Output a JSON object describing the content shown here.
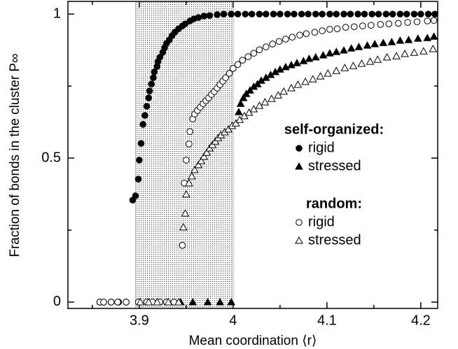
{
  "chart_data": {
    "type": "scatter",
    "xlabel": "Mean coordination ⟨r⟩",
    "ylabel": "Fraction of bonds in the cluster P∞",
    "xlim": [
      3.824,
      4.218
    ],
    "ylim": [
      -0.022,
      1.044
    ],
    "xticks": [
      3.9,
      4,
      4.1,
      4.2
    ],
    "yticks": [
      0,
      0.5,
      1
    ],
    "xminorticks": [
      3.85,
      3.95,
      4.05,
      4.15
    ],
    "yminorticks": [
      0.25,
      0.75
    ],
    "shaded_region": {
      "x": [
        3.896,
        4.0
      ],
      "color": "#999999"
    },
    "legend_position": "right",
    "groups": [
      {
        "title": "self-organized:",
        "series": [
          {
            "name": "rigid",
            "marker": "circle",
            "filled": true,
            "color": "#000000",
            "x": [
              3.858,
              3.862,
              3.87,
              3.878,
              3.886,
              3.893,
              3.896,
              3.899,
              3.9,
              3.902,
              3.904,
              3.906,
              3.908,
              3.91,
              3.911,
              3.913,
              3.915,
              3.916,
              3.919,
              3.92,
              3.922,
              3.925,
              3.927,
              3.929,
              3.932,
              3.935,
              3.938,
              3.942,
              3.946,
              3.949,
              3.954,
              3.958,
              3.963,
              3.969,
              3.975,
              3.983,
              3.99,
              3.998,
              4.005,
              4.013,
              4.02,
              4.028,
              4.035,
              4.043,
              4.05,
              4.058,
              4.065,
              4.073,
              4.08,
              4.088,
              4.095,
              4.103,
              4.11,
              4.118,
              4.125,
              4.133,
              4.14,
              4.148,
              4.155,
              4.163,
              4.17,
              4.178,
              4.185,
              4.193,
              4.2,
              4.208,
              4.215
            ],
            "values": [
              0,
              0,
              0,
              0,
              0,
              0.354,
              0.369,
              0.427,
              0.493,
              0.551,
              0.617,
              0.648,
              0.68,
              0.709,
              0.733,
              0.757,
              0.779,
              0.799,
              0.818,
              0.835,
              0.85,
              0.867,
              0.883,
              0.898,
              0.91,
              0.925,
              0.937,
              0.949,
              0.959,
              0.966,
              0.976,
              0.983,
              0.988,
              0.993,
              0.995,
              0.998,
              1,
              1,
              1,
              1,
              1,
              1,
              1,
              1,
              1,
              1,
              1,
              1,
              1,
              1,
              1,
              1,
              1,
              1,
              1,
              1,
              1,
              1,
              1,
              1,
              1,
              1,
              1,
              1,
              1,
              1,
              1
            ]
          },
          {
            "name": "stressed",
            "marker": "triangle",
            "filled": true,
            "color": "#000000",
            "x": [
              3.944,
              3.957,
              3.973,
              3.986,
              3.998,
              4.006,
              4.008,
              4.011,
              4.014,
              4.018,
              4.022,
              4.026,
              4.03,
              4.035,
              4.04,
              4.045,
              4.05,
              4.056,
              4.062,
              4.068,
              4.075,
              4.081,
              4.088,
              4.096,
              4.103,
              4.11,
              4.118,
              4.126,
              4.134,
              4.143,
              4.151,
              4.16,
              4.169,
              4.178,
              4.187,
              4.197,
              4.207,
              4.214
            ],
            "values": [
              0,
              0,
              0,
              0,
              0,
              0.66,
              0.689,
              0.709,
              0.723,
              0.735,
              0.748,
              0.757,
              0.769,
              0.779,
              0.789,
              0.799,
              0.808,
              0.816,
              0.823,
              0.83,
              0.837,
              0.845,
              0.85,
              0.857,
              0.864,
              0.869,
              0.874,
              0.881,
              0.886,
              0.891,
              0.896,
              0.9,
              0.903,
              0.908,
              0.91,
              0.915,
              0.917,
              0.922
            ]
          }
        ]
      },
      {
        "title": "random:",
        "series": [
          {
            "name": "rigid",
            "marker": "circle",
            "filled": false,
            "color": "#000000",
            "x": [
              3.858,
              3.862,
              3.87,
              3.877,
              3.886,
              3.899,
              3.908,
              3.914,
              3.922,
              3.929,
              3.937,
              3.946,
              3.948,
              3.95,
              3.953,
              3.954,
              3.957,
              3.959,
              3.962,
              3.965,
              3.968,
              3.971,
              3.974,
              3.977,
              3.98,
              3.983,
              3.986,
              3.989,
              3.992,
              3.996,
              4.0,
              4.005,
              4.01,
              4.016,
              4.022,
              4.028,
              4.035,
              4.042,
              4.049,
              4.056,
              4.063,
              4.071,
              4.078,
              4.087,
              4.095,
              4.103,
              4.111,
              4.12,
              4.129,
              4.138,
              4.147,
              4.157,
              4.166,
              4.176,
              4.186,
              4.196,
              4.207,
              4.214
            ],
            "values": [
              0,
              0,
              0,
              0,
              0,
              0,
              0,
              0,
              0,
              0,
              0,
              0.197,
              0.413,
              0.493,
              0.549,
              0.592,
              0.636,
              0.653,
              0.665,
              0.677,
              0.689,
              0.699,
              0.709,
              0.721,
              0.731,
              0.743,
              0.755,
              0.767,
              0.779,
              0.794,
              0.811,
              0.825,
              0.84,
              0.852,
              0.864,
              0.876,
              0.886,
              0.896,
              0.905,
              0.913,
              0.92,
              0.927,
              0.932,
              0.937,
              0.942,
              0.947,
              0.949,
              0.954,
              0.956,
              0.959,
              0.961,
              0.964,
              0.966,
              0.968,
              0.971,
              0.973,
              0.976,
              0.978
            ]
          },
          {
            "name": "stressed",
            "marker": "triangle",
            "filled": false,
            "color": "#000000",
            "x": [
              3.901,
              3.91,
              3.919,
              3.931,
              3.942,
              3.947,
              3.949,
              3.95,
              3.953,
              3.956,
              3.959,
              3.963,
              3.966,
              3.969,
              3.972,
              3.975,
              3.978,
              3.981,
              3.984,
              3.987,
              3.991,
              3.995,
              3.999,
              4.003,
              4.007,
              4.012,
              4.017,
              4.022,
              4.028,
              4.034,
              4.041,
              4.048,
              4.054,
              4.062,
              4.069,
              4.077,
              4.085,
              4.093,
              4.101,
              4.11,
              4.119,
              4.128,
              4.137,
              4.146,
              4.154,
              4.164,
              4.174,
              4.183,
              4.193,
              4.203,
              4.213
            ],
            "values": [
              0,
              0,
              0,
              0,
              0,
              0.26,
              0.308,
              0.374,
              0.413,
              0.437,
              0.459,
              0.476,
              0.49,
              0.505,
              0.519,
              0.534,
              0.546,
              0.558,
              0.57,
              0.58,
              0.59,
              0.6,
              0.612,
              0.621,
              0.633,
              0.646,
              0.658,
              0.67,
              0.682,
              0.694,
              0.706,
              0.718,
              0.731,
              0.743,
              0.755,
              0.765,
              0.774,
              0.784,
              0.794,
              0.803,
              0.813,
              0.82,
              0.828,
              0.835,
              0.842,
              0.85,
              0.854,
              0.862,
              0.866,
              0.871,
              0.879
            ]
          }
        ]
      }
    ]
  }
}
